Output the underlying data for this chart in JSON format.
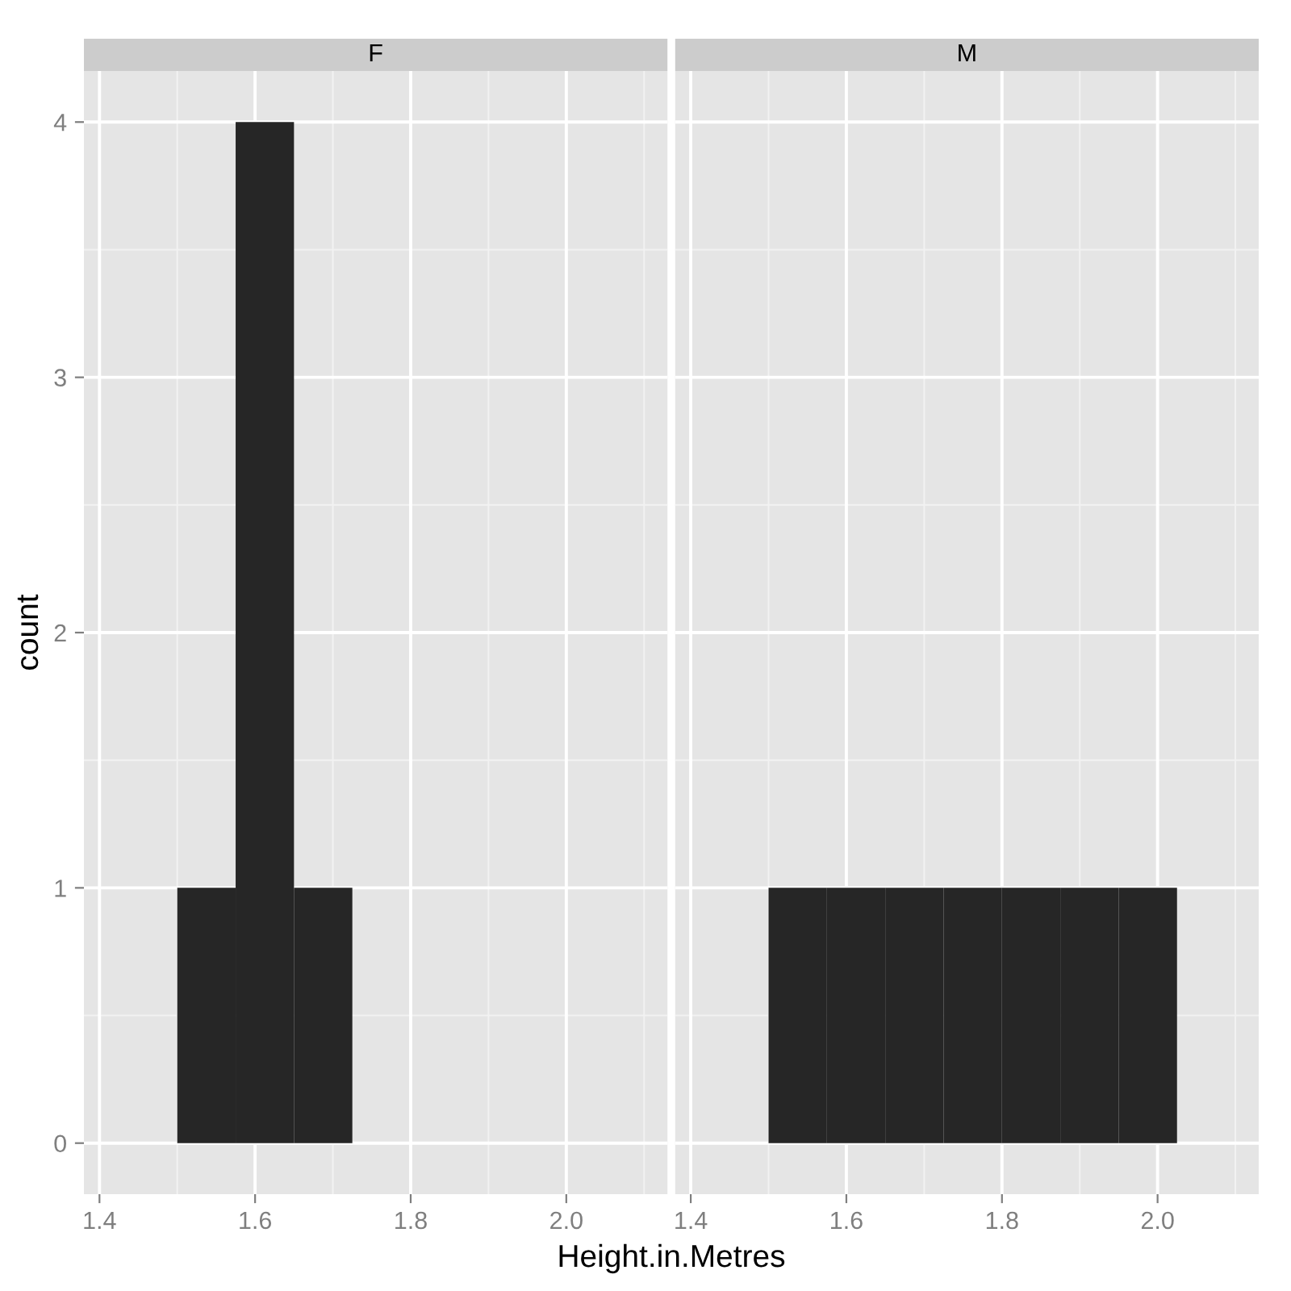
{
  "chart_data": [
    {
      "type": "histogram",
      "title": "F",
      "ylabel": "count",
      "xlabel": "Height.in.Metres",
      "bins": [
        1.5,
        1.575,
        1.65,
        1.725
      ],
      "values": [
        1,
        4,
        1
      ],
      "color": "#262626",
      "xlim": [
        1.38,
        2.13
      ],
      "ylim": [
        -0.2,
        4.2
      ],
      "xticks": [
        1.4,
        1.6,
        1.8,
        {
          "value": 2,
          "label": "2.0"
        }
      ],
      "yticks": [
        0,
        1,
        2,
        3,
        4
      ],
      "grid": true
    },
    {
      "type": "histogram",
      "title": "M",
      "bins": [
        1.5,
        1.575,
        1.65,
        1.725,
        1.8,
        1.875,
        1.95,
        2.025
      ],
      "values": [
        1,
        1,
        1,
        1,
        1,
        1,
        1
      ],
      "color": "#262626",
      "xlim": [
        1.38,
        2.13
      ],
      "ylim": [
        -0.2,
        4.2
      ],
      "xticks": [
        1.4,
        1.6,
        1.8,
        {
          "value": 2,
          "label": "2.0"
        }
      ],
      "yticks": [
        0,
        1,
        2,
        3,
        4
      ],
      "grid": true,
      "tick_labels": "x"
    }
  ]
}
